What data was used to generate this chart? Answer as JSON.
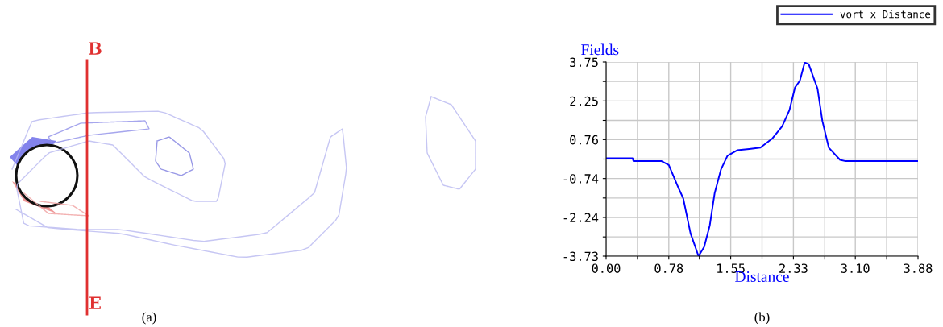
{
  "chart_data": [
    {
      "type": "other",
      "annotations": [
        "B",
        "E",
        "(a)"
      ]
    },
    {
      "type": "line",
      "ylabel": "Fields",
      "xlabel": "Distance",
      "annotations": [
        "(b)"
      ],
      "series": [
        {
          "name": "vort x Distance",
          "color": "#0000ff",
          "x": [
            0.0,
            0.33,
            0.34,
            0.69,
            0.78,
            0.9,
            0.96,
            1.05,
            1.15,
            1.22,
            1.29,
            1.35,
            1.43,
            1.51,
            1.63,
            1.78,
            1.92,
            2.07,
            2.19,
            2.28,
            2.35,
            2.41,
            2.47,
            2.52,
            2.63,
            2.69,
            2.77,
            2.91,
            2.98,
            3.88
          ],
          "values": [
            0.04,
            0.04,
            -0.07,
            -0.07,
            -0.22,
            -1.1,
            -1.51,
            -2.85,
            -3.73,
            -3.37,
            -2.54,
            -1.31,
            -0.38,
            0.14,
            0.35,
            0.4,
            0.45,
            0.81,
            1.27,
            1.89,
            2.77,
            3.03,
            3.73,
            3.67,
            2.72,
            1.48,
            0.45,
            -0.02,
            -0.07,
            -0.07
          ]
        }
      ],
      "xlim": [
        0,
        3.88
      ],
      "ylim": [
        -3.73,
        3.75
      ],
      "xticks": [
        {
          "value": 0,
          "label": "0.00"
        },
        {
          "value": 0.39,
          "label": null
        },
        {
          "value": 0.78,
          "label": "0.78"
        },
        {
          "value": 1.16,
          "label": null
        },
        {
          "value": 1.55,
          "label": "1.55"
        },
        {
          "value": 1.94,
          "label": null
        },
        {
          "value": 2.33,
          "label": "2.33"
        },
        {
          "value": 2.72,
          "label": null
        },
        {
          "value": 3.1,
          "label": "3.10"
        },
        {
          "value": 3.49,
          "label": null
        },
        {
          "value": 3.88,
          "label": "3.88"
        }
      ],
      "yticks": [
        {
          "value": -3.73,
          "label": "-3.73"
        },
        {
          "value": -2.99,
          "label": null
        },
        {
          "value": -2.24,
          "label": "-2.24"
        },
        {
          "value": -1.49,
          "label": null
        },
        {
          "value": -0.74,
          "label": "-0.74"
        },
        {
          "value": 0.01,
          "label": null
        },
        {
          "value": 0.76,
          "label": "0.76"
        },
        {
          "value": 1.5,
          "label": null
        },
        {
          "value": 2.25,
          "label": "2.25"
        },
        {
          "value": 3.0,
          "label": null
        },
        {
          "value": 3.75,
          "label": "3.75"
        }
      ],
      "grid": true,
      "legend": "top right",
      "marker": "none",
      "line_style": "solid"
    }
  ]
}
